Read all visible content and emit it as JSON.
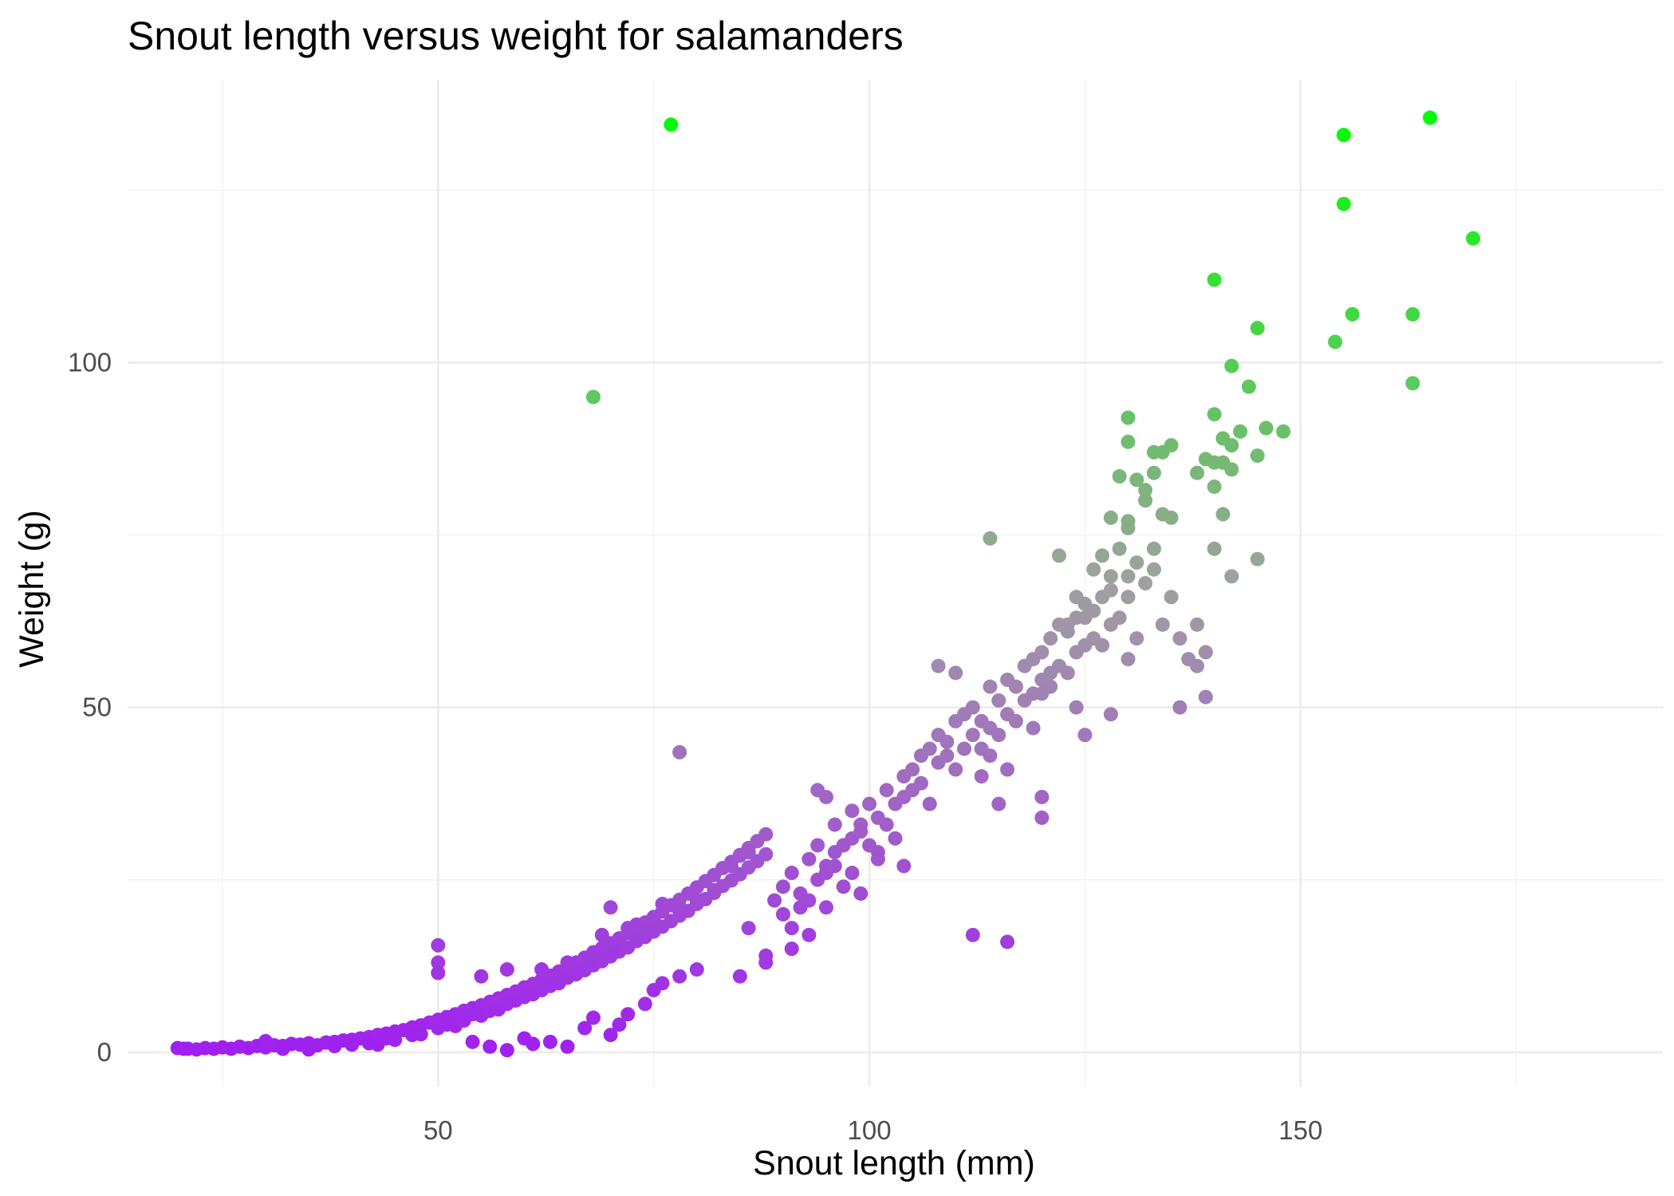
{
  "chart_data": {
    "type": "scatter",
    "title": "Snout length versus weight for salamanders",
    "xlabel": "Snout length (mm)",
    "ylabel": "Weight (g)",
    "xlim": [
      14,
      192
    ],
    "ylim": [
      -5,
      141
    ],
    "x_ticks": [
      50,
      100,
      150
    ],
    "x_tick_labels": [
      "50",
      "100",
      "150"
    ],
    "y_ticks": [
      0,
      50,
      100
    ],
    "y_tick_labels": [
      "0",
      "50",
      "100"
    ],
    "x_minor_ticks": [
      25,
      75,
      125,
      175
    ],
    "y_minor_ticks": [
      25,
      75,
      125
    ],
    "grid": true,
    "legend": "none",
    "color_scale": {
      "low": "#a020f0",
      "mid": "#a0a0a0",
      "high": "#00ff00",
      "by": "weight",
      "range": [
        0,
        135
      ]
    },
    "points": [
      [
        19.8,
        0.6
      ],
      [
        20.5,
        0.5
      ],
      [
        21,
        0.5
      ],
      [
        22,
        0.4
      ],
      [
        23,
        0.6
      ],
      [
        24,
        0.5
      ],
      [
        25,
        0.7
      ],
      [
        26,
        0.5
      ],
      [
        27,
        0.8
      ],
      [
        28,
        0.6
      ],
      [
        29,
        0.9
      ],
      [
        30,
        0.7
      ],
      [
        31,
        1.0
      ],
      [
        32,
        0.9
      ],
      [
        33,
        1.2
      ],
      [
        34,
        1.1
      ],
      [
        35,
        1.3
      ],
      [
        36,
        1.0
      ],
      [
        37,
        1.4
      ],
      [
        38,
        1.5
      ],
      [
        39,
        1.7
      ],
      [
        40,
        1.8
      ],
      [
        41,
        2.0
      ],
      [
        42,
        2.2
      ],
      [
        43,
        2.5
      ],
      [
        44,
        2.7
      ],
      [
        45,
        3.0
      ],
      [
        46,
        3.2
      ],
      [
        47,
        3.6
      ],
      [
        48,
        3.9
      ],
      [
        49,
        4.3
      ],
      [
        50,
        4.7
      ],
      [
        51,
        5.1
      ],
      [
        52,
        5.5
      ],
      [
        53,
        6.0
      ],
      [
        54,
        6.4
      ],
      [
        55,
        6.8
      ],
      [
        56,
        7.3
      ],
      [
        57,
        7.8
      ],
      [
        58,
        8.3
      ],
      [
        59,
        8.8
      ],
      [
        60,
        9.4
      ],
      [
        61,
        9.9
      ],
      [
        62,
        10.5
      ],
      [
        63,
        11.1
      ],
      [
        64,
        11.7
      ],
      [
        65,
        12.4
      ],
      [
        66,
        13.0
      ],
      [
        67,
        13.7
      ],
      [
        68,
        14.4
      ],
      [
        69,
        15.1
      ],
      [
        70,
        15.8
      ],
      [
        71,
        16.5
      ],
      [
        72,
        17.3
      ],
      [
        73,
        18.0
      ],
      [
        74,
        18.8
      ],
      [
        75,
        19.6
      ],
      [
        76,
        20.4
      ],
      [
        77,
        21.3
      ],
      [
        78,
        22.1
      ],
      [
        79,
        23.0
      ],
      [
        80,
        23.9
      ],
      [
        81,
        24.8
      ],
      [
        82,
        25.7
      ],
      [
        83,
        26.7
      ],
      [
        84,
        27.6
      ],
      [
        85,
        28.6
      ],
      [
        86,
        29.6
      ],
      [
        87,
        30.6
      ],
      [
        88,
        31.6
      ],
      [
        30,
        1.6
      ],
      [
        32,
        0.5
      ],
      [
        35,
        0.4
      ],
      [
        38,
        0.9
      ],
      [
        40,
        1.1
      ],
      [
        42,
        1.3
      ],
      [
        43,
        1.1
      ],
      [
        44,
        2.0
      ],
      [
        45,
        1.8
      ],
      [
        47,
        2.5
      ],
      [
        48,
        2.6
      ],
      [
        50,
        3.5
      ],
      [
        51,
        4.0
      ],
      [
        52,
        3.8
      ],
      [
        53,
        4.6
      ],
      [
        54,
        5.5
      ],
      [
        55,
        5.3
      ],
      [
        56,
        6.0
      ],
      [
        57,
        6.2
      ],
      [
        58,
        7.0
      ],
      [
        59,
        7.5
      ],
      [
        60,
        8.0
      ],
      [
        61,
        8.4
      ],
      [
        62,
        9.0
      ],
      [
        63,
        9.6
      ],
      [
        64,
        10.0
      ],
      [
        65,
        10.8
      ],
      [
        66,
        11.3
      ],
      [
        67,
        11.9
      ],
      [
        68,
        12.6
      ],
      [
        69,
        13.2
      ],
      [
        70,
        13.9
      ],
      [
        71,
        14.6
      ],
      [
        72,
        15.2
      ],
      [
        73,
        16.1
      ],
      [
        74,
        16.7
      ],
      [
        75,
        17.5
      ],
      [
        76,
        18.2
      ],
      [
        77,
        19.0
      ],
      [
        78,
        19.8
      ],
      [
        79,
        20.5
      ],
      [
        80,
        21.5
      ],
      [
        81,
        22.2
      ],
      [
        82,
        23.1
      ],
      [
        83,
        24.1
      ],
      [
        84,
        24.9
      ],
      [
        85,
        25.8
      ],
      [
        86,
        26.8
      ],
      [
        87,
        27.7
      ],
      [
        88,
        28.7
      ],
      [
        50,
        15.5
      ],
      [
        50,
        13.0
      ],
      [
        50,
        11.5
      ],
      [
        55,
        11.0
      ],
      [
        58,
        12.0
      ],
      [
        62,
        12.0
      ],
      [
        65,
        13.0
      ],
      [
        68,
        14.5
      ],
      [
        69,
        17.0
      ],
      [
        70,
        21.0
      ],
      [
        72,
        18.0
      ],
      [
        73,
        18.5
      ],
      [
        74,
        17.5
      ],
      [
        75,
        19.5
      ],
      [
        76,
        21.5
      ],
      [
        78,
        20.5
      ],
      [
        80,
        22.0
      ],
      [
        82,
        23.5
      ],
      [
        84,
        27.0
      ],
      [
        85,
        28.5
      ],
      [
        86,
        29.0
      ],
      [
        54,
        1.5
      ],
      [
        56,
        0.8
      ],
      [
        58,
        0.3
      ],
      [
        60,
        2.0
      ],
      [
        61,
        1.2
      ],
      [
        63,
        1.5
      ],
      [
        65,
        0.8
      ],
      [
        67,
        3.5
      ],
      [
        68,
        5.0
      ],
      [
        70,
        2.5
      ],
      [
        71,
        4.0
      ],
      [
        72,
        5.5
      ],
      [
        74,
        7.0
      ],
      [
        75,
        9.0
      ],
      [
        76,
        10.0
      ],
      [
        78,
        11.0
      ],
      [
        80,
        12.0
      ],
      [
        85,
        11.0
      ],
      [
        88,
        13.0
      ],
      [
        89,
        22
      ],
      [
        90,
        24
      ],
      [
        91,
        26
      ],
      [
        92,
        23
      ],
      [
        93,
        28
      ],
      [
        94,
        30
      ],
      [
        95,
        27
      ],
      [
        96,
        33
      ],
      [
        97,
        30
      ],
      [
        98,
        35
      ],
      [
        99,
        33
      ],
      [
        100,
        36
      ],
      [
        101,
        34
      ],
      [
        102,
        38
      ],
      [
        103,
        36
      ],
      [
        104,
        40
      ],
      [
        105,
        41
      ],
      [
        106,
        43
      ],
      [
        107,
        44
      ],
      [
        108,
        46
      ],
      [
        109,
        45
      ],
      [
        110,
        48
      ],
      [
        111,
        49
      ],
      [
        112,
        50
      ],
      [
        113,
        48
      ],
      [
        114,
        53
      ],
      [
        115,
        51
      ],
      [
        116,
        54
      ],
      [
        117,
        53
      ],
      [
        118,
        56
      ],
      [
        119,
        57
      ],
      [
        120,
        58
      ],
      [
        121,
        60
      ],
      [
        122,
        62
      ],
      [
        123,
        61
      ],
      [
        124,
        63
      ],
      [
        125,
        65
      ],
      [
        126,
        64
      ],
      [
        127,
        66
      ],
      [
        128,
        67
      ],
      [
        90,
        20
      ],
      [
        91,
        18
      ],
      [
        92,
        21
      ],
      [
        93,
        22
      ],
      [
        94,
        25
      ],
      [
        95,
        26
      ],
      [
        96,
        29
      ],
      [
        97,
        24
      ],
      [
        98,
        31
      ],
      [
        99,
        32
      ],
      [
        100,
        30
      ],
      [
        101,
        29
      ],
      [
        102,
        33
      ],
      [
        103,
        31
      ],
      [
        104,
        37
      ],
      [
        105,
        38
      ],
      [
        106,
        39
      ],
      [
        107,
        36
      ],
      [
        108,
        42
      ],
      [
        109,
        43
      ],
      [
        110,
        41
      ],
      [
        111,
        44
      ],
      [
        112,
        46
      ],
      [
        113,
        44
      ],
      [
        114,
        47
      ],
      [
        115,
        46
      ],
      [
        116,
        49
      ],
      [
        117,
        48
      ],
      [
        118,
        51
      ],
      [
        119,
        52
      ],
      [
        120,
        54
      ],
      [
        121,
        53
      ],
      [
        122,
        56
      ],
      [
        123,
        55
      ],
      [
        124,
        58
      ],
      [
        125,
        59
      ],
      [
        126,
        60
      ],
      [
        127,
        59
      ],
      [
        128,
        62
      ],
      [
        129,
        63
      ],
      [
        94,
        38
      ],
      [
        95,
        37
      ],
      [
        97,
        30
      ],
      [
        99,
        23
      ],
      [
        101,
        28
      ],
      [
        104,
        27
      ],
      [
        108,
        56
      ],
      [
        110,
        55
      ],
      [
        113,
        40
      ],
      [
        114,
        43
      ],
      [
        115,
        36
      ],
      [
        116,
        41
      ],
      [
        119,
        47
      ],
      [
        120,
        37
      ],
      [
        120,
        34
      ],
      [
        124,
        50
      ],
      [
        125,
        46
      ],
      [
        128,
        49
      ],
      [
        130,
        57
      ],
      [
        131,
        60
      ],
      [
        112,
        17
      ],
      [
        116,
        16
      ],
      [
        91,
        15
      ],
      [
        93,
        17
      ],
      [
        95,
        21
      ],
      [
        78,
        43.5
      ],
      [
        86,
        18
      ],
      [
        88,
        14
      ],
      [
        96,
        27
      ],
      [
        98,
        26
      ],
      [
        130,
        66
      ],
      [
        130,
        69
      ],
      [
        131,
        71
      ],
      [
        132,
        68
      ],
      [
        133,
        70
      ],
      [
        134,
        62
      ],
      [
        135,
        66
      ],
      [
        136,
        60
      ],
      [
        137,
        57
      ],
      [
        138,
        62
      ],
      [
        139,
        58
      ],
      [
        139,
        51.5
      ],
      [
        140,
        73
      ],
      [
        141,
        78
      ],
      [
        142,
        69
      ],
      [
        138,
        56
      ],
      [
        136,
        50
      ],
      [
        133,
        73
      ],
      [
        132,
        80
      ],
      [
        131,
        83
      ],
      [
        129,
        73
      ],
      [
        128,
        69
      ],
      [
        127,
        72
      ],
      [
        126,
        70
      ],
      [
        125,
        63
      ],
      [
        124,
        66
      ],
      [
        123,
        62
      ],
      [
        122,
        72
      ],
      [
        121,
        55
      ],
      [
        120,
        52
      ],
      [
        114,
        74.5
      ],
      [
        130,
        76
      ],
      [
        130,
        77
      ],
      [
        130,
        92
      ],
      [
        130,
        88.5
      ],
      [
        132,
        81.5
      ],
      [
        133,
        84
      ],
      [
        133,
        87
      ],
      [
        134,
        87
      ],
      [
        134,
        78
      ],
      [
        135,
        88
      ],
      [
        135,
        77.5
      ],
      [
        138,
        84
      ],
      [
        139,
        86
      ],
      [
        140,
        92.5
      ],
      [
        140,
        82
      ],
      [
        140,
        85.5
      ],
      [
        141,
        89
      ],
      [
        141,
        85.5
      ],
      [
        142,
        99.5
      ],
      [
        142,
        84.5
      ],
      [
        142,
        88
      ],
      [
        143,
        90
      ],
      [
        144,
        96.5
      ],
      [
        145,
        86.5
      ],
      [
        145,
        71.5
      ],
      [
        146,
        90.5
      ],
      [
        148,
        90
      ],
      [
        129,
        83.5
      ],
      [
        128,
        77.5
      ],
      [
        140,
        112
      ],
      [
        145,
        105
      ],
      [
        155,
        123
      ],
      [
        156,
        107
      ],
      [
        154,
        103
      ],
      [
        163,
        107
      ],
      [
        163,
        97
      ],
      [
        170,
        118
      ],
      [
        155,
        133
      ],
      [
        165,
        135.5
      ],
      [
        77,
        134.5
      ],
      [
        68,
        95
      ]
    ]
  }
}
